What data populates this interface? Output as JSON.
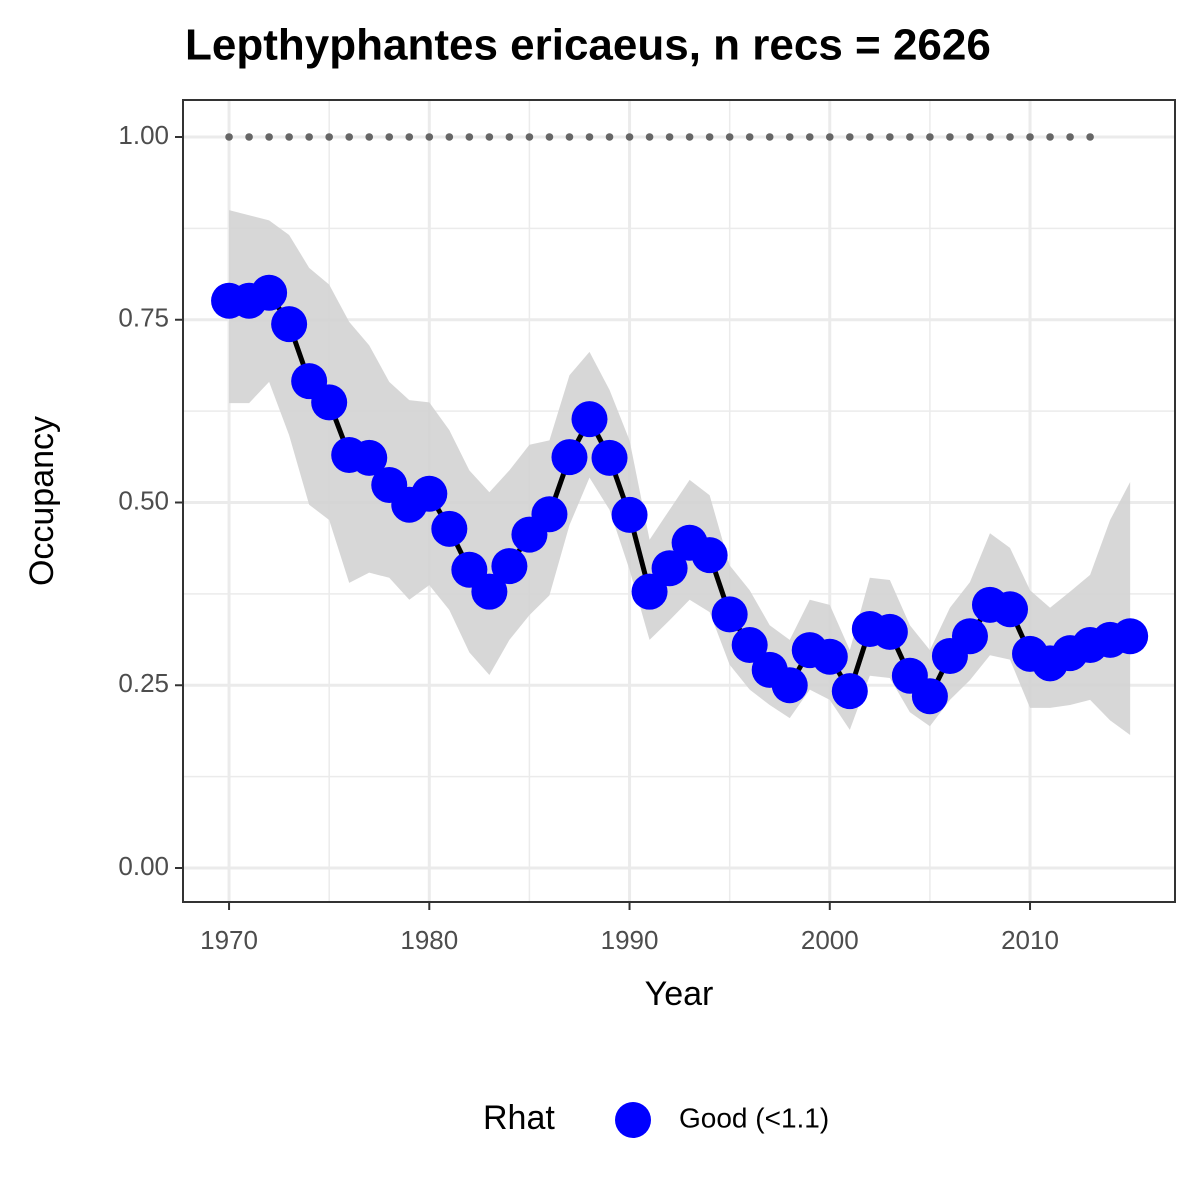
{
  "chart_data": {
    "type": "line",
    "title": "Lepthyphantes ericaeus, n recs = 2626",
    "x_label": "Year",
    "y_label": "Occupancy",
    "x": [
      1970,
      1971,
      1972,
      1973,
      1974,
      1975,
      1976,
      1977,
      1978,
      1979,
      1980,
      1981,
      1982,
      1983,
      1984,
      1985,
      1986,
      1987,
      1988,
      1989,
      1990,
      1991,
      1992,
      1993,
      1994,
      1995,
      1996,
      1997,
      1998,
      1999,
      2000,
      2001,
      2002,
      2003,
      2004,
      2005,
      2006,
      2007,
      2008,
      2009,
      2010,
      2011,
      2012,
      2013,
      2014,
      2015
    ],
    "series": [
      {
        "name": "Good (<1.1)",
        "color": "#0000ff",
        "line_color": "#000000",
        "ribbon_color": "#d3d3d3",
        "values": [
          0.776,
          0.776,
          0.787,
          0.744,
          0.666,
          0.637,
          0.565,
          0.561,
          0.524,
          0.497,
          0.512,
          0.464,
          0.408,
          0.378,
          0.413,
          0.456,
          0.484,
          0.562,
          0.614,
          0.561,
          0.483,
          0.378,
          0.41,
          0.445,
          0.428,
          0.347,
          0.305,
          0.271,
          0.25,
          0.298,
          0.289,
          0.242,
          0.327,
          0.323,
          0.263,
          0.235,
          0.29,
          0.317,
          0.36,
          0.354,
          0.293,
          0.28,
          0.294,
          0.305,
          0.312,
          0.317
        ],
        "lower": [
          0.636,
          0.636,
          0.665,
          0.592,
          0.497,
          0.476,
          0.39,
          0.404,
          0.397,
          0.367,
          0.387,
          0.353,
          0.295,
          0.264,
          0.312,
          0.346,
          0.373,
          0.469,
          0.534,
          0.49,
          0.408,
          0.312,
          0.339,
          0.367,
          0.35,
          0.278,
          0.244,
          0.223,
          0.205,
          0.244,
          0.23,
          0.189,
          0.263,
          0.26,
          0.213,
          0.194,
          0.23,
          0.257,
          0.291,
          0.285,
          0.219,
          0.219,
          0.223,
          0.23,
          0.202,
          0.182
        ],
        "upper": [
          0.9,
          0.893,
          0.886,
          0.866,
          0.821,
          0.798,
          0.747,
          0.715,
          0.665,
          0.64,
          0.637,
          0.599,
          0.544,
          0.514,
          0.544,
          0.579,
          0.585,
          0.674,
          0.706,
          0.654,
          0.585,
          0.449,
          0.49,
          0.531,
          0.51,
          0.414,
          0.38,
          0.332,
          0.312,
          0.367,
          0.36,
          0.298,
          0.397,
          0.394,
          0.332,
          0.298,
          0.356,
          0.391,
          0.458,
          0.438,
          0.38,
          0.356,
          0.378,
          0.401,
          0.476,
          0.528
        ]
      }
    ],
    "reference_line": {
      "color": "#666666",
      "values": [
        1,
        1,
        1,
        1,
        1,
        1,
        1,
        1,
        1,
        1,
        1,
        1,
        1,
        1,
        1,
        1,
        1,
        1,
        1,
        1,
        1,
        1,
        1,
        1,
        1,
        1,
        1,
        1,
        1,
        1,
        1,
        1,
        1,
        1,
        1,
        1,
        1,
        1,
        1,
        1,
        1,
        1,
        1,
        1,
        null,
        null
      ]
    },
    "xlim": [
      1967.7,
      2017.24
    ],
    "ylim": [
      -0.0465,
      1.0506
    ],
    "xticks": [
      1970,
      1980,
      1990,
      2000,
      2010
    ],
    "yticks": [
      {
        "value": 0,
        "label": "0.00"
      },
      {
        "value": 0.25,
        "label": "0.25"
      },
      {
        "value": 0.5,
        "label": "0.50"
      },
      {
        "value": 0.75,
        "label": "0.75"
      },
      {
        "value": 1,
        "label": "1.00"
      }
    ],
    "grid": true,
    "legend_title": "Rhat",
    "legend_position": "bottom"
  }
}
